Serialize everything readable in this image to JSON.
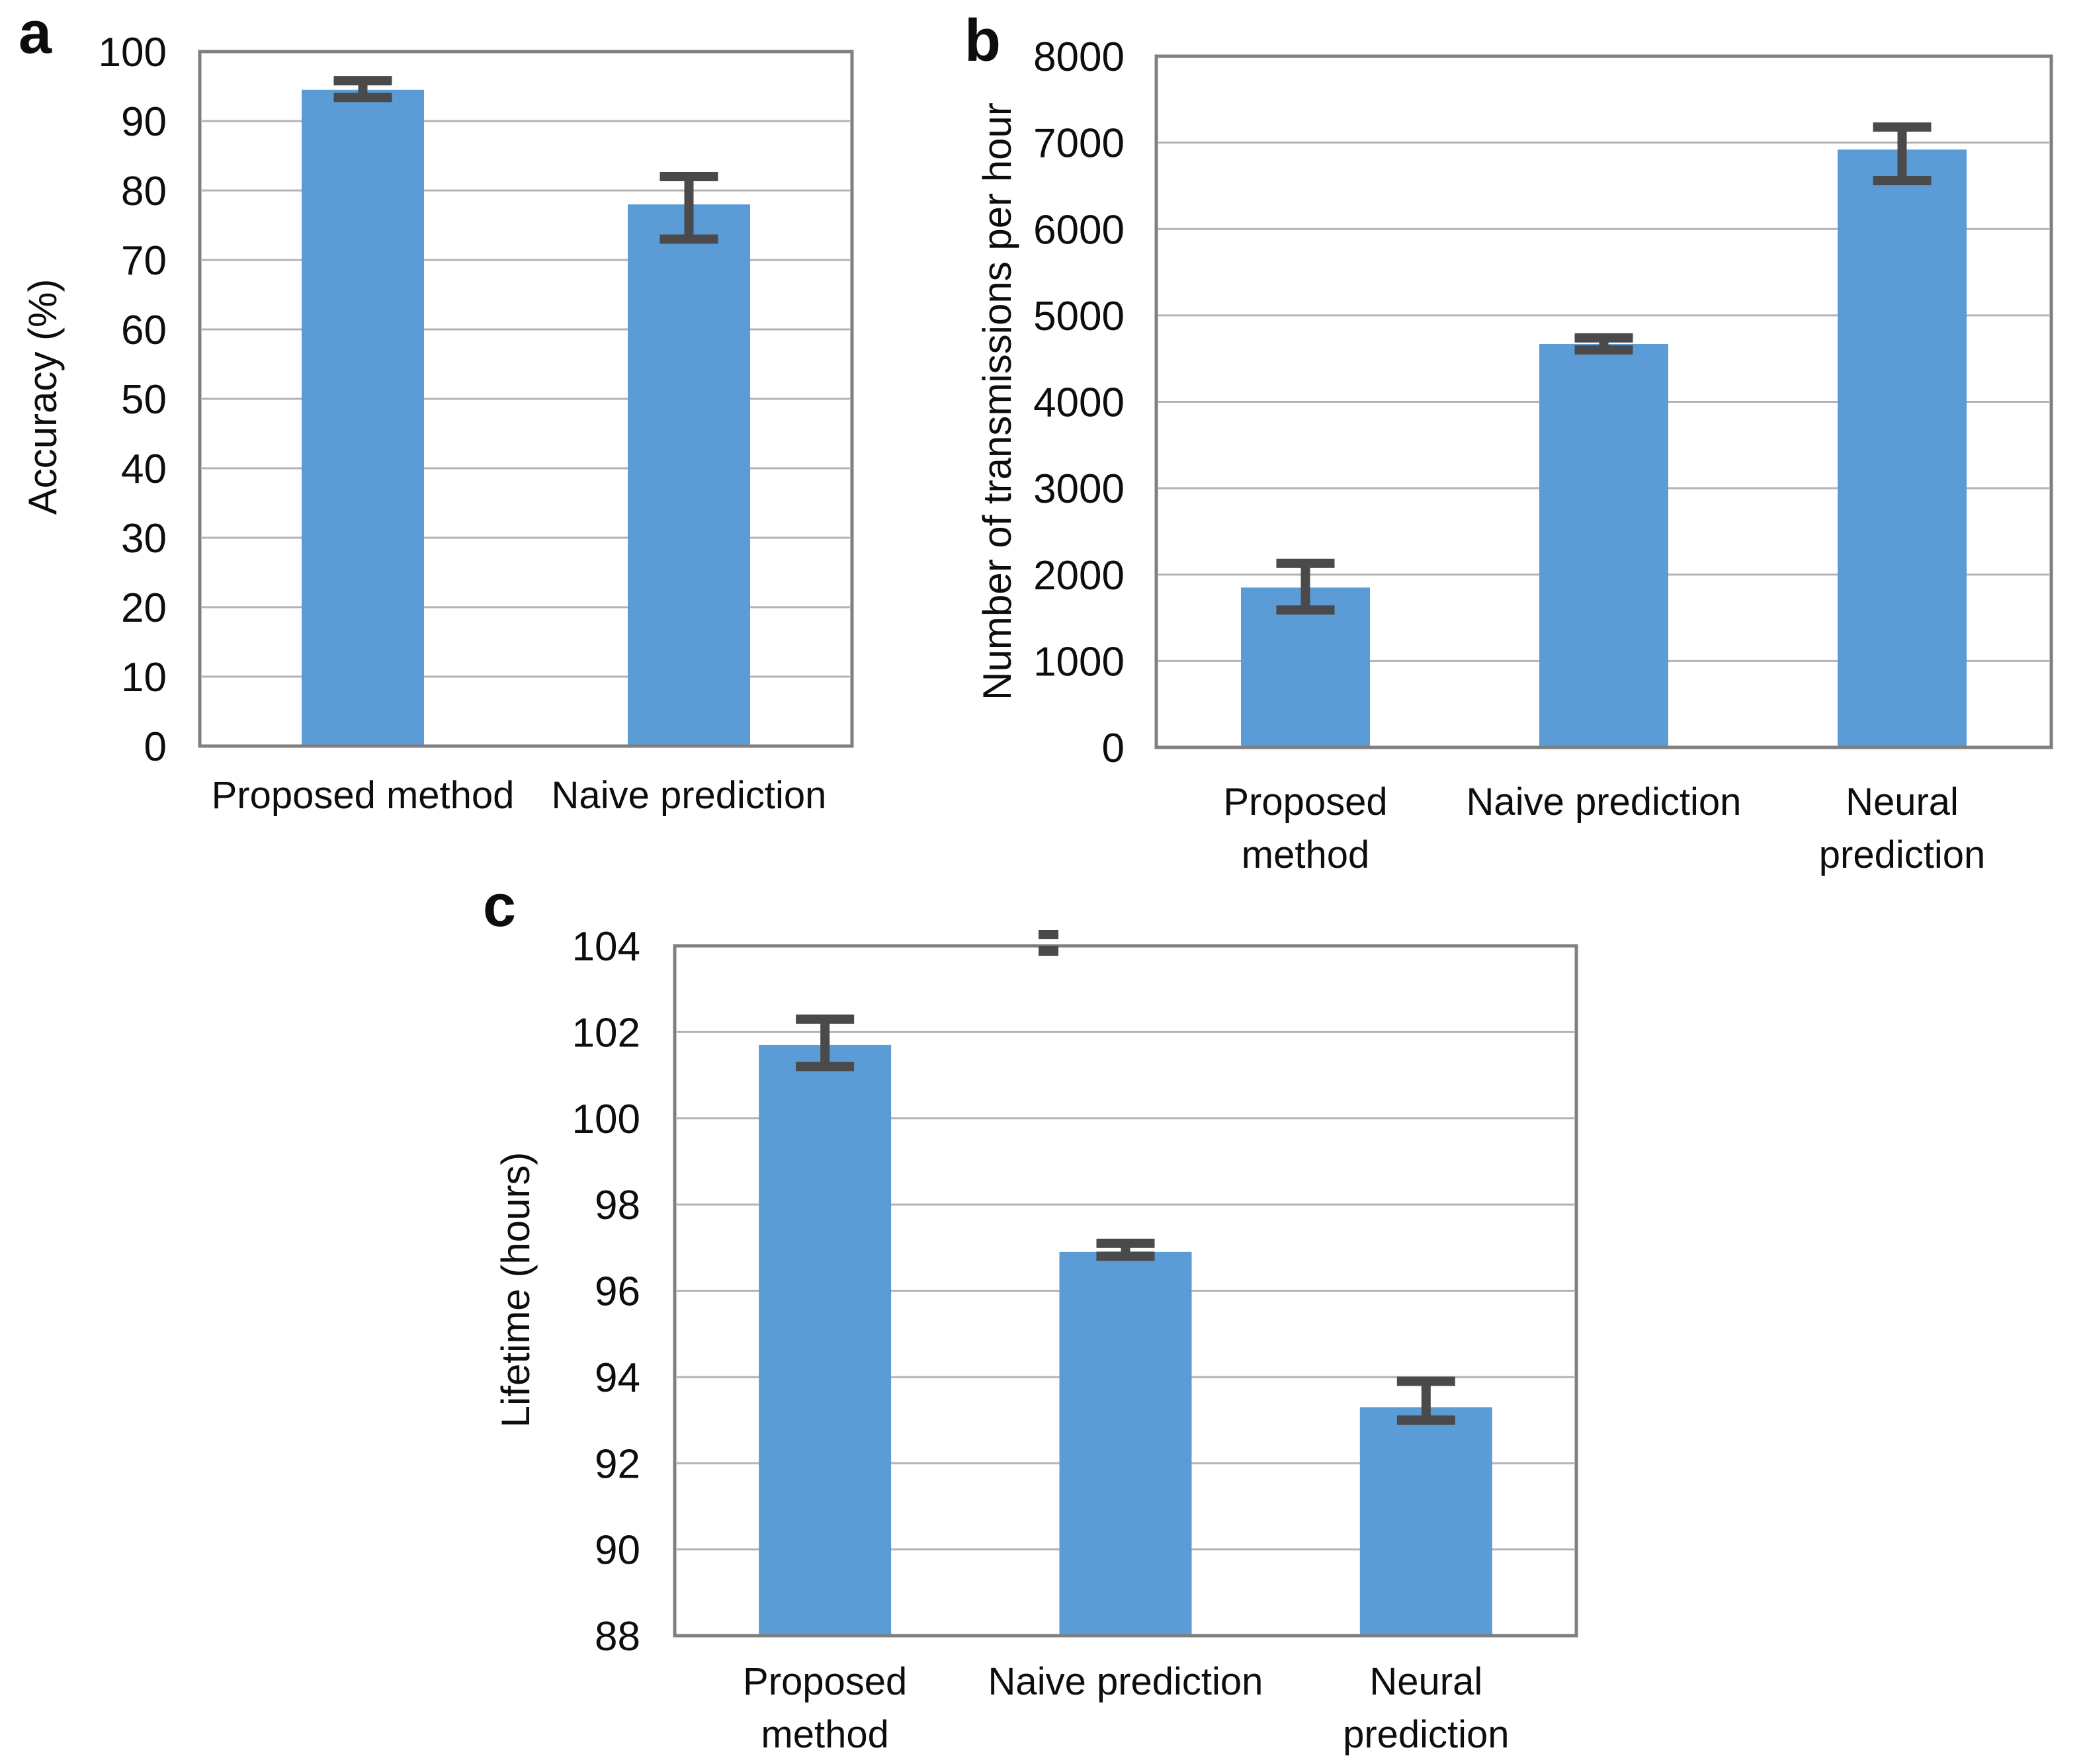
{
  "figure_description": "Three-panel bar chart figure comparing Proposed method, Naive prediction and Neural prediction",
  "styles": {
    "bar_color": "#5b9cd7",
    "error_bar_color": "#4a4a4a",
    "gridline_color": "#b3b3b3",
    "frame_color": "#7f7f7f",
    "text_color": "#0d0d0d",
    "background_color": "#ffffff"
  },
  "chart_data": [
    {
      "panel": "a",
      "type": "bar",
      "title": "",
      "xlabel": "",
      "ylabel": "Accuracy (%)",
      "ylim": [
        0,
        100
      ],
      "ytick_step": 10,
      "grid": true,
      "legend": false,
      "categories": [
        "Proposed method",
        "Naive prediction"
      ],
      "category_lines": [
        [
          "Proposed method"
        ],
        [
          "Naive prediction"
        ]
      ],
      "values": [
        94.5,
        78.0
      ],
      "error_low": [
        93.4,
        73.0
      ],
      "error_high": [
        95.8,
        82.0
      ]
    },
    {
      "panel": "b",
      "type": "bar",
      "title": "",
      "xlabel": "",
      "ylabel": "Number of transmissions per hour",
      "ylim": [
        0,
        8000
      ],
      "ytick_step": 1000,
      "grid": true,
      "legend": false,
      "categories": [
        "Proposed method",
        "Naive prediction",
        "Neural prediction"
      ],
      "category_lines": [
        [
          "Proposed",
          "method"
        ],
        [
          "Naive prediction"
        ],
        [
          "Neural",
          "prediction"
        ]
      ],
      "values": [
        1850,
        4670,
        6920
      ],
      "error_low": [
        1590,
        4600,
        6560
      ],
      "error_high": [
        2130,
        4740,
        7180
      ]
    },
    {
      "panel": "c",
      "type": "bar",
      "title": "",
      "xlabel": "",
      "ylabel": "Lifetime (hours)",
      "ylim": [
        88,
        104
      ],
      "ytick_step": 2,
      "grid": true,
      "legend": false,
      "categories": [
        "Proposed method",
        "Naive prediction",
        "Neural prediction"
      ],
      "category_lines": [
        [
          "Proposed",
          "method"
        ],
        [
          "Naive prediction"
        ],
        [
          "Neural",
          "prediction"
        ]
      ],
      "values": [
        101.7,
        96.9,
        93.3
      ],
      "error_low": [
        101.2,
        96.8,
        93.0
      ],
      "error_high": [
        102.3,
        97.1,
        93.9
      ],
      "clipped_error_marker": true
    }
  ]
}
